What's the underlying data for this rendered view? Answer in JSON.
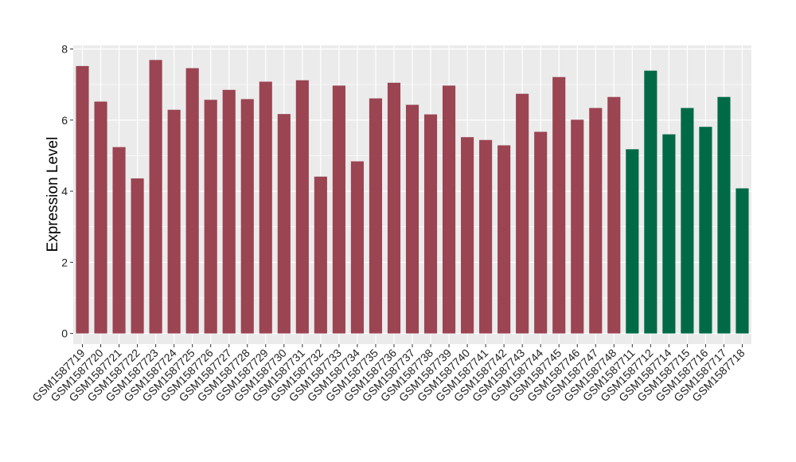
{
  "chart_data": {
    "type": "bar",
    "title": "",
    "xlabel": "",
    "ylabel": "Expression Level",
    "ylim": [
      -0.3,
      8.1
    ],
    "yticks": [
      0,
      2,
      4,
      6,
      8
    ],
    "grid": true,
    "legend": "none",
    "colors": {
      "group_1": "#9b4452",
      "group_2": "#006a46",
      "panel_bg": "#ebebeb",
      "grid": "#ffffff"
    },
    "categories": [
      "GSM1587719",
      "GSM1587720",
      "GSM1587721",
      "GSM1587722",
      "GSM1587723",
      "GSM1587724",
      "GSM1587725",
      "GSM1587726",
      "GSM1587727",
      "GSM1587728",
      "GSM1587729",
      "GSM1587730",
      "GSM1587731",
      "GSM1587732",
      "GSM1587733",
      "GSM1587734",
      "GSM1587735",
      "GSM1587736",
      "GSM1587737",
      "GSM1587738",
      "GSM1587739",
      "GSM1587740",
      "GSM1587741",
      "GSM1587742",
      "GSM1587743",
      "GSM1587744",
      "GSM1587745",
      "GSM1587746",
      "GSM1587747",
      "GSM1587748",
      "GSM1587711",
      "GSM1587712",
      "GSM1587714",
      "GSM1587715",
      "GSM1587716",
      "GSM1587717",
      "GSM1587718"
    ],
    "values": [
      7.52,
      6.52,
      5.24,
      4.36,
      7.69,
      6.29,
      7.46,
      6.57,
      6.85,
      6.59,
      7.08,
      6.17,
      7.12,
      4.41,
      6.97,
      4.84,
      6.61,
      7.05,
      6.43,
      6.16,
      6.97,
      5.52,
      5.44,
      5.29,
      6.74,
      5.67,
      7.21,
      6.01,
      6.34,
      6.65,
      5.18,
      7.39,
      5.6,
      6.34,
      5.81,
      6.65,
      4.08
    ],
    "groups": [
      1,
      1,
      1,
      1,
      1,
      1,
      1,
      1,
      1,
      1,
      1,
      1,
      1,
      1,
      1,
      1,
      1,
      1,
      1,
      1,
      1,
      1,
      1,
      1,
      1,
      1,
      1,
      1,
      1,
      1,
      2,
      2,
      2,
      2,
      2,
      2,
      2
    ]
  }
}
